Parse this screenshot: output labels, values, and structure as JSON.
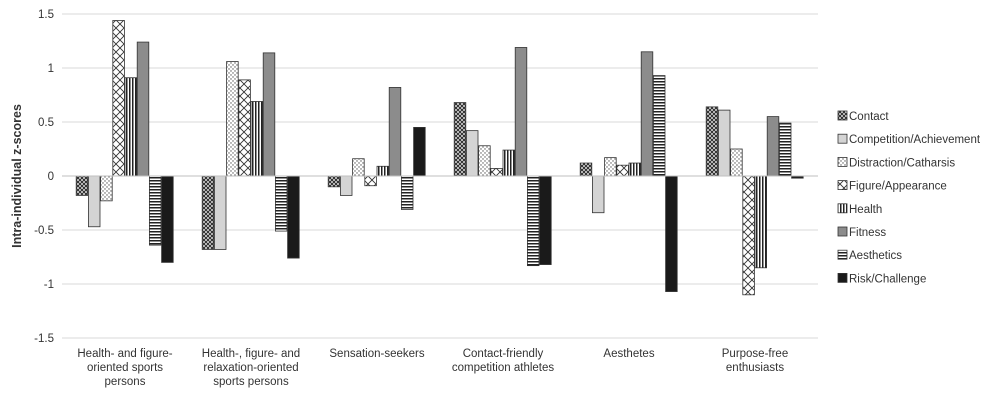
{
  "chart_data": {
    "type": "bar",
    "title": "",
    "ylabel": "Intra-individual z-scores",
    "xlabel": "",
    "ylim": [
      -1.5,
      1.5
    ],
    "yticks": [
      1.5,
      1,
      0.5,
      0,
      -0.5,
      -1,
      -1.5
    ],
    "ytick_labels": [
      "1.5",
      "1",
      "0.5",
      "0",
      "-0.5",
      "-1",
      "-1.5"
    ],
    "grid": true,
    "legend_position": "right",
    "categories": [
      [
        "Health- and figure-",
        "oriented sports",
        "persons"
      ],
      [
        "Health-, figure- and",
        "relaxation-oriented",
        "sports persons"
      ],
      [
        "Sensation-seekers"
      ],
      [
        "Contact-friendly",
        "competition athletes"
      ],
      [
        "Aesthetes"
      ],
      [
        "Purpose-free",
        "enthusiasts"
      ]
    ],
    "series": [
      {
        "name": "Contact",
        "pattern": "crosshatch",
        "values": [
          -0.18,
          -0.68,
          -0.1,
          0.68,
          0.12,
          0.64
        ]
      },
      {
        "name": "Competition/Achievement",
        "pattern": "light",
        "values": [
          -0.47,
          -0.68,
          -0.18,
          0.42,
          -0.34,
          0.61
        ]
      },
      {
        "name": "Distraction/Catharsis",
        "pattern": "dots",
        "values": [
          -0.23,
          1.06,
          0.16,
          0.28,
          0.17,
          0.25
        ]
      },
      {
        "name": "Figure/Appearance",
        "pattern": "diagcross",
        "values": [
          1.44,
          0.89,
          -0.09,
          0.07,
          0.1,
          -1.1
        ]
      },
      {
        "name": "Health",
        "pattern": "vlines",
        "values": [
          0.91,
          0.69,
          0.09,
          0.24,
          0.12,
          -0.85
        ]
      },
      {
        "name": "Fitness",
        "pattern": "solid-gray",
        "values": [
          1.24,
          1.14,
          0.82,
          1.19,
          1.15,
          0.55
        ]
      },
      {
        "name": "Aesthetics",
        "pattern": "hlines",
        "values": [
          -0.64,
          -0.51,
          -0.31,
          -0.83,
          0.93,
          0.49
        ]
      },
      {
        "name": "Risk/Challenge",
        "pattern": "solid-black",
        "values": [
          -0.8,
          -0.76,
          0.45,
          -0.82,
          -1.07,
          -0.02
        ]
      }
    ]
  }
}
